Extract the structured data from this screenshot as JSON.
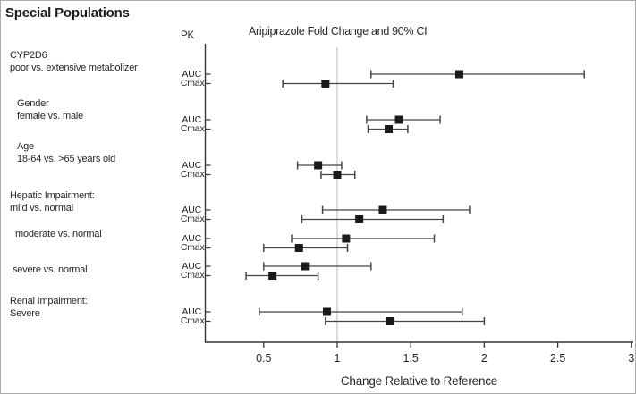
{
  "header": {
    "title": "Special Populations"
  },
  "chart": {
    "pk_header": "PK",
    "title": "Aripiprazole Fold Change and 90% CI",
    "xlabel": "Change Relative to Reference"
  },
  "chart_data": {
    "type": "forest",
    "title": "Aripiprazole Fold Change and 90% CI",
    "xlabel": "Change Relative to Reference",
    "ci_level": "90% CI",
    "reference_line": 1,
    "xlim": [
      0.1,
      3.0
    ],
    "xticks": [
      0.5,
      1,
      1.5,
      2,
      2.5,
      3
    ],
    "xtick_labels": [
      "0.5",
      "1",
      "1.5",
      "2",
      "2.5",
      "3"
    ],
    "grid": false,
    "pk_metrics": [
      "AUC",
      "Cmax"
    ],
    "groups": [
      {
        "label_lines": [
          "CYP2D6",
          "poor vs. extensive metabolizer"
        ],
        "rows": [
          {
            "metric": "AUC",
            "estimate": 1.83,
            "ci_low": 1.23,
            "ci_high": 2.68
          },
          {
            "metric": "Cmax",
            "estimate": 0.92,
            "ci_low": 0.63,
            "ci_high": 1.38
          }
        ]
      },
      {
        "label_lines": [
          "Gender",
          "female vs. male"
        ],
        "rows": [
          {
            "metric": "AUC",
            "estimate": 1.42,
            "ci_low": 1.2,
            "ci_high": 1.7
          },
          {
            "metric": "Cmax",
            "estimate": 1.35,
            "ci_low": 1.21,
            "ci_high": 1.48
          }
        ]
      },
      {
        "label_lines": [
          "Age",
          "18-64 vs. >65 years old"
        ],
        "rows": [
          {
            "metric": "AUC",
            "estimate": 0.87,
            "ci_low": 0.73,
            "ci_high": 1.03
          },
          {
            "metric": "Cmax",
            "estimate": 1.0,
            "ci_low": 0.89,
            "ci_high": 1.12
          }
        ]
      },
      {
        "label_lines": [
          "Hepatic Impairment:",
          "mild vs. normal"
        ],
        "rows": [
          {
            "metric": "AUC",
            "estimate": 1.31,
            "ci_low": 0.9,
            "ci_high": 1.9
          },
          {
            "metric": "Cmax",
            "estimate": 1.15,
            "ci_low": 0.76,
            "ci_high": 1.72
          }
        ]
      },
      {
        "label_lines": [
          "moderate vs. normal"
        ],
        "rows": [
          {
            "metric": "AUC",
            "estimate": 1.06,
            "ci_low": 0.69,
            "ci_high": 1.66
          },
          {
            "metric": "Cmax",
            "estimate": 0.74,
            "ci_low": 0.5,
            "ci_high": 1.07
          }
        ]
      },
      {
        "label_lines": [
          "severe vs. normal"
        ],
        "rows": [
          {
            "metric": "AUC",
            "estimate": 0.78,
            "ci_low": 0.5,
            "ci_high": 1.23
          },
          {
            "metric": "Cmax",
            "estimate": 0.56,
            "ci_low": 0.38,
            "ci_high": 0.87
          }
        ]
      },
      {
        "label_lines": [
          "Renal Impairment:",
          "Severe"
        ],
        "rows": [
          {
            "metric": "AUC",
            "estimate": 0.93,
            "ci_low": 0.47,
            "ci_high": 1.85
          },
          {
            "metric": "Cmax",
            "estimate": 1.36,
            "ci_low": 0.92,
            "ci_high": 2.0
          }
        ]
      }
    ],
    "colors": {
      "line": "#454545",
      "marker": "#1a1a1a",
      "axis": "#353535",
      "reference_line": "#c9c9c9",
      "text": "#262626"
    }
  }
}
